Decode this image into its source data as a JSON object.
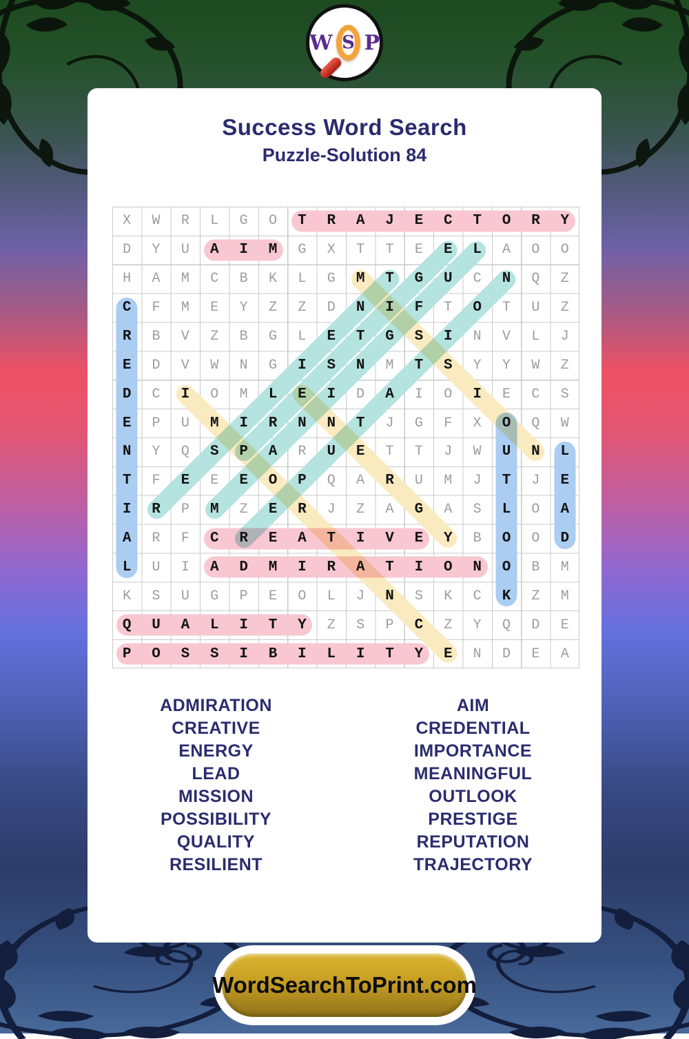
{
  "page": {
    "title": "Success Word Search",
    "subtitle": "Puzzle-Solution 84",
    "footer_site": "WordSearchToPrint.com"
  },
  "logo": {
    "letter_w": "W",
    "letter_s": "S",
    "letter_p": "P"
  },
  "grid": {
    "size": 16,
    "rows": [
      "XWRLGOTRAJECTORY",
      "DYUAIMGXTTEELAOO",
      "HAMCBKLGMTGUCNQZ",
      "CFMEYZZDNIFTOTUZ",
      "RBVZBGLETGSINVLJ",
      "EDVWNGISNMTSYYWZ",
      "DCIOMLEIDAIOIECS",
      "EPUMIRNNTJGFXOQW",
      "NYQSPARUETTJWUNL",
      "TFEEEOPQARUMJTJE",
      "IRPMZERJZAGASLOA",
      "ARFCREATIVEYBOOD",
      "LUIADMIRATIONOBM",
      "KSUGPEOLJNSKCKZM",
      "QUALITYZSPCZYQDE",
      "POSSIBILITYENDEA"
    ]
  },
  "highlight_colors": {
    "pink": "#f8c7d2",
    "blue": "#abcdf2",
    "teal": "#b5e3df",
    "yellow": "#faeabf"
  },
  "solutions": [
    {
      "word": "TRAJECTORY",
      "start": [
        1,
        7
      ],
      "end": [
        1,
        16
      ],
      "color": "pink"
    },
    {
      "word": "AIM",
      "start": [
        2,
        4
      ],
      "end": [
        2,
        6
      ],
      "color": "pink"
    },
    {
      "word": "CREATIVE",
      "start": [
        12,
        4
      ],
      "end": [
        12,
        11
      ],
      "color": "pink"
    },
    {
      "word": "ADMIRATION",
      "start": [
        13,
        4
      ],
      "end": [
        13,
        13
      ],
      "color": "pink"
    },
    {
      "word": "QUALITY",
      "start": [
        15,
        1
      ],
      "end": [
        15,
        7
      ],
      "color": "pink"
    },
    {
      "word": "POSSIBILITY",
      "start": [
        16,
        1
      ],
      "end": [
        16,
        11
      ],
      "color": "pink"
    },
    {
      "word": "CREDENTIAL",
      "start": [
        4,
        1
      ],
      "end": [
        13,
        1
      ],
      "color": "blue"
    },
    {
      "word": "OUTLOOK",
      "start": [
        8,
        14
      ],
      "end": [
        14,
        14
      ],
      "color": "blue"
    },
    {
      "word": "LEAD",
      "start": [
        9,
        16
      ],
      "end": [
        12,
        16
      ],
      "color": "blue"
    },
    {
      "word": "MISSION",
      "start": [
        3,
        9
      ],
      "end": [
        9,
        15
      ],
      "color": "yellow"
    },
    {
      "word": "ENERGY",
      "start": [
        7,
        7
      ],
      "end": [
        12,
        12
      ],
      "color": "yellow"
    },
    {
      "word": "IMPORTANCE",
      "start": [
        7,
        3
      ],
      "end": [
        16,
        12
      ],
      "color": "yellow"
    },
    {
      "word": "MEANINGFUL",
      "start": [
        11,
        4
      ],
      "end": [
        2,
        13
      ],
      "color": "teal"
    },
    {
      "word": "PRESTIGE",
      "start": [
        9,
        5
      ],
      "end": [
        2,
        12
      ],
      "color": "teal"
    },
    {
      "word": "RESILIENT",
      "start": [
        11,
        2
      ],
      "end": [
        3,
        10
      ],
      "color": "teal"
    },
    {
      "word": "REPUTATION",
      "start": [
        12,
        5
      ],
      "end": [
        3,
        14
      ],
      "color": "teal"
    }
  ],
  "word_list": {
    "left": [
      "ADMIRATION",
      "CREATIVE",
      "ENERGY",
      "LEAD",
      "MISSION",
      "POSSIBILITY",
      "QUALITY",
      "RESILIENT"
    ],
    "right": [
      "AIM",
      "CREDENTIAL",
      "IMPORTANCE",
      "MEANINGFUL",
      "OUTLOOK",
      "PRESTIGE",
      "REPUTATION",
      "TRAJECTORY"
    ]
  },
  "colors": {
    "title_text": "#2b2c6e",
    "word_list_text": "#2b2c6e",
    "footer_gold": "#c79e23",
    "grid_line": "#c9c9c9",
    "letter_gray": "#9c9c9c",
    "letter_solved": "#141414"
  }
}
